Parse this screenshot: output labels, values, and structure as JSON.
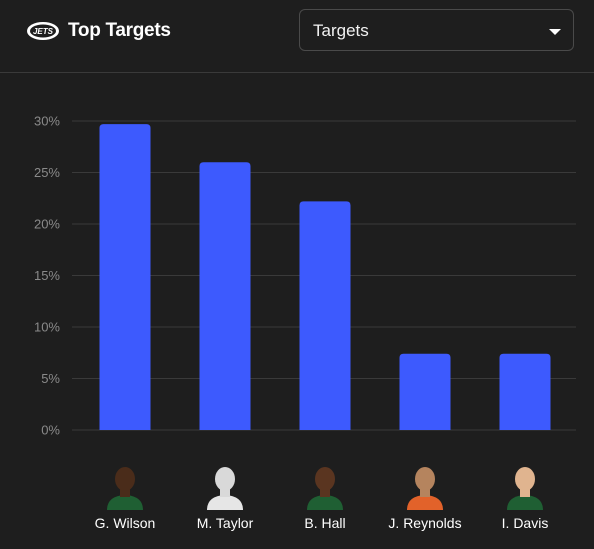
{
  "header": {
    "title": "Top Targets",
    "logo_text": "JETS",
    "logo_icon": "jets-logo-icon"
  },
  "dropdown": {
    "selected": "Targets",
    "caret_icon": "chevron-down-icon"
  },
  "colors": {
    "bar": "#3d5afe",
    "background": "#1e1e1e",
    "grid": "#3a3a3a"
  },
  "chart_data": {
    "type": "bar",
    "categories": [
      "G. Wilson",
      "M. Taylor",
      "B. Hall",
      "J. Reynolds",
      "I. Davis"
    ],
    "values": [
      29.7,
      26.0,
      22.2,
      7.4,
      7.4
    ],
    "yticks": [
      "0%",
      "5%",
      "10%",
      "15%",
      "20%",
      "25%",
      "30%"
    ],
    "ylim": [
      0,
      30
    ],
    "grid": true,
    "title": "",
    "xlabel": "",
    "ylabel": ""
  },
  "players": [
    {
      "name": "G. Wilson",
      "jersey": "#1f5f33",
      "skin": "#4a2c1a"
    },
    {
      "name": "M. Taylor",
      "jersey": "#e6e6e6",
      "skin": "#d9d9d9"
    },
    {
      "name": "B. Hall",
      "jersey": "#1f5f33",
      "skin": "#5a3520"
    },
    {
      "name": "J. Reynolds",
      "jersey": "#e2622a",
      "skin": "#b5845e"
    },
    {
      "name": "I. Davis",
      "jersey": "#1f5f33",
      "skin": "#e0b48f"
    }
  ]
}
